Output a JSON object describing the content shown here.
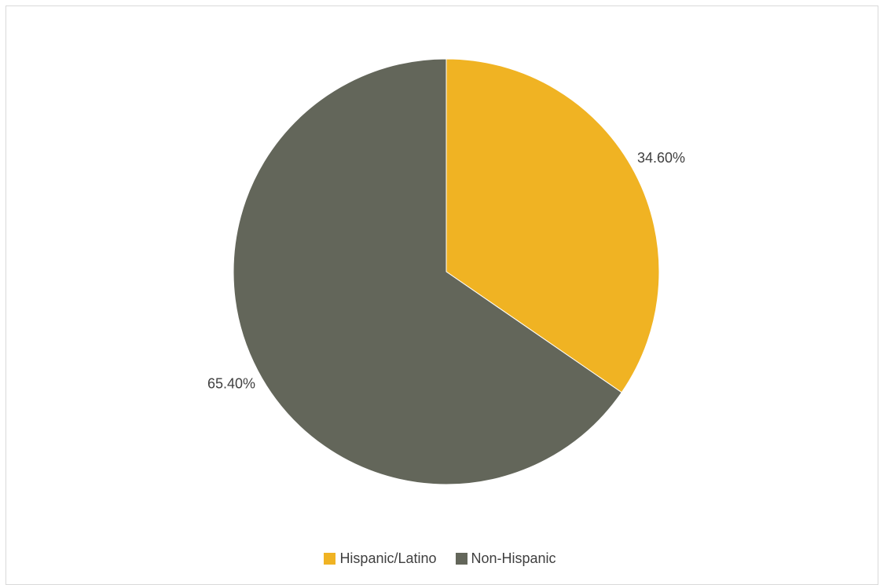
{
  "chart_data": {
    "type": "pie",
    "title": "",
    "slices": [
      {
        "name": "Hispanic/Latino",
        "value": 34.6,
        "label": "34.60%",
        "color": "#F0B323"
      },
      {
        "name": "Non-Hispanic",
        "value": 65.4,
        "label": "65.40%",
        "color": "#63665A"
      }
    ],
    "start_angle_deg": 0,
    "direction": "clockwise",
    "legend_position": "bottom",
    "data_label_color": "#404040"
  }
}
